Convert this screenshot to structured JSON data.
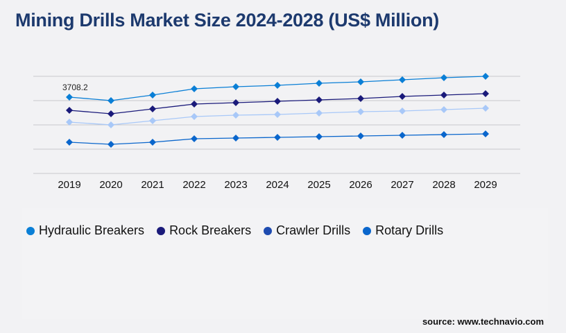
{
  "title": "Mining Drills Market Size 2024-2028 (US$ Million)",
  "source": "source: www.technavio.com",
  "chart_data": {
    "type": "line",
    "title": "Mining Drills Market Size 2024-2028 (US$ Million)",
    "categories": [
      "2019",
      "2020",
      "2021",
      "2022",
      "2023",
      "2024",
      "2025",
      "2026",
      "2027",
      "2028",
      "2029"
    ],
    "ylim": [
      0,
      4720
    ],
    "grid": true,
    "legend": "bottom",
    "annotations": [
      {
        "series": "Hydraulic Breakers",
        "x": "2019",
        "text": "3708.2"
      }
    ],
    "series": [
      {
        "name": "Hydraulic Breakers",
        "color": "#0a7fd6",
        "legend_color": "#0a7fd6",
        "values": [
          3708.2,
          3540,
          3809,
          4113,
          4214,
          4281,
          4382,
          4450,
          4551,
          4652,
          4719
        ]
      },
      {
        "name": "Rock Breakers",
        "color": "#1a1a7a",
        "legend_color": "#1a1a7a",
        "values": [
          3068,
          2899,
          3135,
          3371,
          3438,
          3506,
          3573,
          3641,
          3742,
          3809,
          3877
        ]
      },
      {
        "name": "Crawler Drills",
        "color": "#a8c8f8",
        "legend_color": "#1e4bb0",
        "values": [
          2495,
          2360,
          2562,
          2764,
          2832,
          2865,
          2933,
          3000,
          3034,
          3101,
          3169
        ]
      },
      {
        "name": "Rotary Drills",
        "color": "#0a66cc",
        "legend_color": "#0a66cc",
        "values": [
          1517,
          1416,
          1517,
          1686,
          1719,
          1753,
          1787,
          1820,
          1854,
          1888,
          1921
        ]
      }
    ]
  }
}
